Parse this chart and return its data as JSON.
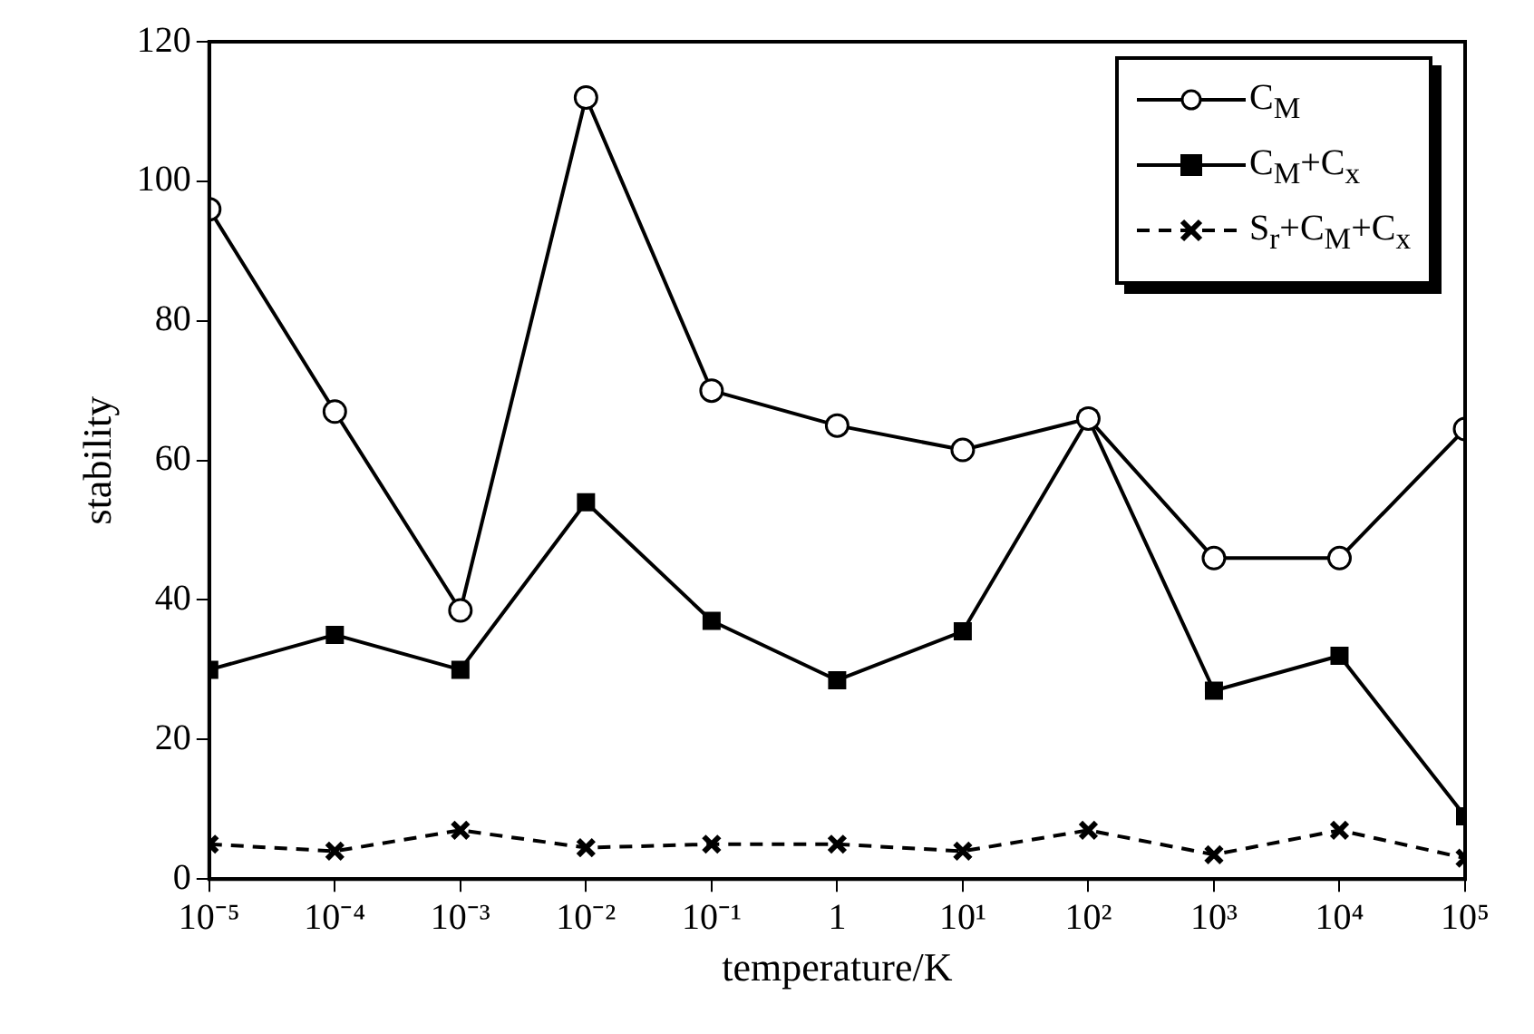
{
  "chart_data": {
    "type": "line",
    "xlabel": "temperature/K",
    "ylabel": "stability",
    "x": [
      1e-05,
      0.0001,
      0.001,
      0.01,
      0.1,
      1,
      10,
      100,
      1000,
      10000,
      100000
    ],
    "series": [
      {
        "name": "C$_{M}$",
        "color": "#000000",
        "marker": "circle",
        "line_style": "solid",
        "values": [
          96,
          67,
          38.5,
          112,
          70,
          65,
          61.5,
          66,
          46,
          46,
          64.5
        ]
      },
      {
        "name": "C$_{M}$+C$_{x}$",
        "color": "#000000",
        "marker": "square",
        "line_style": "solid",
        "values": [
          30,
          35,
          30,
          54,
          37,
          28.5,
          35.5,
          66,
          27,
          32,
          9
        ]
      },
      {
        "name": "S$_{r}$+C$_{M}$+C$_{x}$",
        "color": "#000000",
        "marker": "cross",
        "line_style": "dashed",
        "values": [
          5,
          4,
          7,
          4.5,
          5,
          5,
          4,
          7,
          3.5,
          7,
          3
        ]
      }
    ],
    "log": "x",
    "xlim": [
      1e-05,
      100000
    ],
    "xticks": [
      {
        "value": 1e-05,
        "label": "10⁻⁵"
      },
      {
        "value": 0.0001,
        "label": "10⁻⁴"
      },
      {
        "value": 0.001,
        "label": "10⁻³"
      },
      {
        "value": 0.01,
        "label": "10⁻²"
      },
      {
        "value": 0.1,
        "label": "10⁻¹"
      },
      1,
      {
        "value": 10,
        "label": "10¹"
      },
      {
        "value": 100,
        "label": "10²"
      },
      {
        "value": 1000,
        "label": "10³"
      },
      {
        "value": 10000,
        "label": "10⁴"
      },
      {
        "value": 100000,
        "label": "10⁵"
      }
    ],
    "ylim": [
      0,
      120
    ],
    "yticks": [
      0,
      20,
      40,
      60,
      80,
      100,
      120
    ],
    "grid": false,
    "legend": "top right"
  }
}
